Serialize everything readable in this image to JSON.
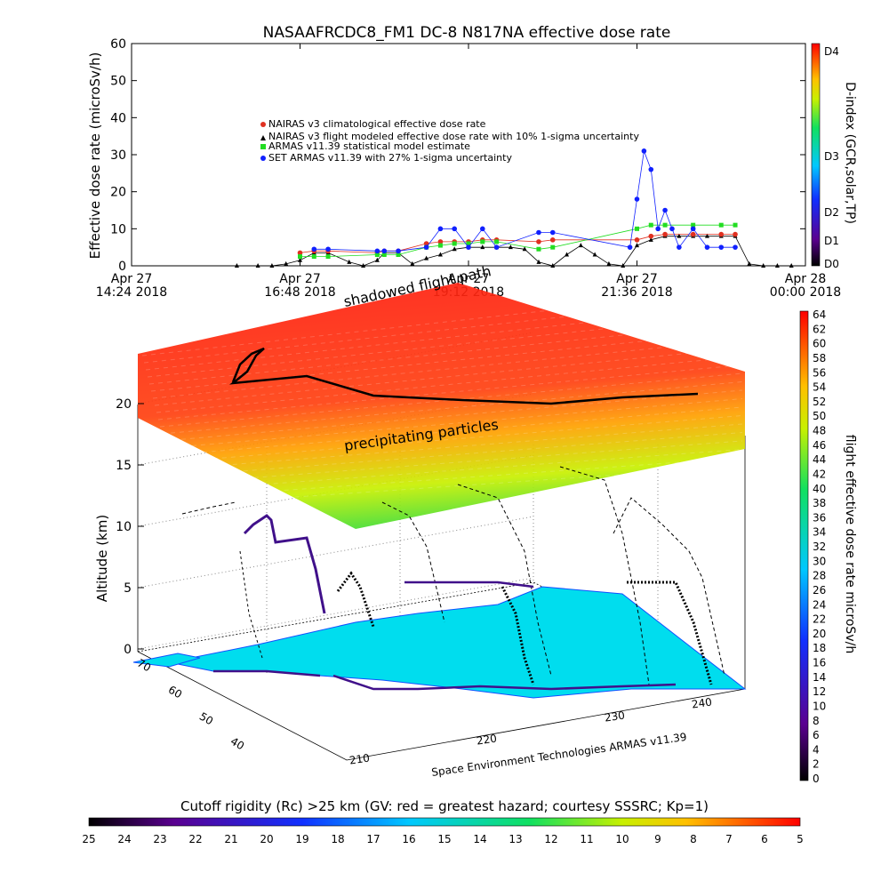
{
  "title": "NASAAFRCDC8_FM1 DC-8    N817NA effective dose rate",
  "chart_data": [
    {
      "type": "scatter",
      "title": "NASAAFRCDC8_FM1 DC-8    N817NA effective dose rate",
      "ylabel": "Effective dose rate (microSv/h)",
      "ylim": [
        0,
        60
      ],
      "yticks": [
        "0",
        "10",
        "20",
        "30",
        "40",
        "50",
        "60"
      ],
      "xticks": [
        {
          "l1": "Apr 27",
          "l2": "14:24 2018"
        },
        {
          "l1": "Apr 27",
          "l2": "16:48 2018"
        },
        {
          "l1": "Apr 27",
          "l2": "19:12 2018"
        },
        {
          "l1": "Apr 27",
          "l2": "21:36 2018"
        },
        {
          "l1": "Apr 28",
          "l2": "00:00 2018"
        }
      ],
      "xlim_hours": [
        14.4,
        24.0
      ],
      "legend": [
        {
          "label": "NAIRAS v3 climatological effective dose rate",
          "color": "#e03020",
          "marker": "circle"
        },
        {
          "label": "NAIRAS v3 flight modeled effective dose rate with 10% 1-sigma uncertainty",
          "color": "#000000",
          "marker": "triangle"
        },
        {
          "label": "ARMAS v11.39 statistical model estimate",
          "color": "#22dd22",
          "marker": "square"
        },
        {
          "label": "SET ARMAS v11.39 with 27% 1-sigma uncertainty",
          "color": "#1020ff",
          "marker": "circle"
        }
      ],
      "legend_position": "upper-left",
      "series": [
        {
          "name": "NAIRAS v3 flight modeled effective dose rate with 10% 1-sigma uncertainty",
          "color": "#000000",
          "x_hours": [
            15.9,
            16.2,
            16.4,
            16.6,
            16.8,
            17.0,
            17.2,
            17.5,
            17.7,
            17.9,
            18.0,
            18.2,
            18.4,
            18.6,
            18.8,
            19.0,
            19.2,
            19.4,
            19.6,
            19.8,
            20.0,
            20.2,
            20.4,
            20.6,
            20.8,
            21.0,
            21.2,
            21.4,
            21.6,
            21.8,
            22.0,
            22.2,
            22.4,
            22.6,
            22.8,
            23.0,
            23.2,
            23.4,
            23.6,
            23.8
          ],
          "values": [
            0,
            0,
            0,
            0.5,
            1.5,
            3.5,
            3.5,
            1,
            0,
            1.5,
            3.5,
            3.5,
            0.5,
            2,
            3,
            4.5,
            5,
            5,
            5,
            5,
            4.5,
            1,
            0,
            3,
            5.5,
            3,
            0.5,
            0,
            5.5,
            7,
            8,
            8,
            8,
            8,
            8,
            8,
            0.5,
            0,
            0,
            0
          ]
        },
        {
          "name": "NAIRAS v3 climatological effective dose rate",
          "color": "#e03020",
          "x_hours": [
            16.8,
            17.0,
            17.2,
            17.9,
            18.0,
            18.2,
            18.6,
            18.8,
            19.0,
            19.2,
            19.4,
            19.6,
            20.2,
            20.4,
            21.6,
            21.8,
            22.0,
            22.4,
            22.8,
            23.0
          ],
          "values": [
            3.5,
            4,
            4,
            3.5,
            4,
            4,
            6,
            6.5,
            6.5,
            6.5,
            7,
            7,
            6.5,
            7,
            7,
            8,
            8.5,
            8.5,
            8.5,
            8.5
          ]
        },
        {
          "name": "ARMAS v11.39 statistical model estimate",
          "color": "#22dd22",
          "x_hours": [
            16.8,
            17.0,
            17.2,
            17.9,
            18.0,
            18.2,
            18.6,
            18.8,
            19.0,
            19.2,
            19.4,
            19.6,
            20.2,
            20.4,
            21.6,
            21.8,
            22.0,
            22.4,
            22.8,
            23.0
          ],
          "values": [
            2.5,
            2.5,
            2.5,
            3,
            3,
            3,
            5,
            5.5,
            6,
            6,
            6.5,
            6.5,
            4.5,
            5,
            10,
            11,
            11,
            11,
            11,
            11
          ]
        },
        {
          "name": "SET ARMAS v11.39 with 27% 1-sigma uncertainty",
          "color": "#1020ff",
          "x_hours": [
            17.0,
            17.2,
            17.9,
            18.0,
            18.2,
            18.6,
            18.8,
            19.0,
            19.2,
            19.4,
            19.6,
            20.2,
            20.4,
            21.5,
            21.6,
            21.7,
            21.8,
            21.9,
            22.0,
            22.1,
            22.2,
            22.4,
            22.6,
            22.8,
            23.0
          ],
          "values": [
            4.5,
            4.5,
            4,
            4,
            4,
            5,
            10,
            10,
            5,
            10,
            5,
            9,
            9,
            5,
            18,
            31,
            26,
            10,
            15,
            10,
            5,
            10,
            5,
            5,
            5
          ]
        }
      ]
    },
    {
      "type": "surface-3d",
      "ylabel": "Altitude (km)",
      "zlim": [
        0,
        20
      ],
      "zticks": [
        "0",
        "5",
        "10",
        "15",
        "20"
      ],
      "lat_ticks": [
        "70",
        "60",
        "50",
        "40"
      ],
      "lon_ticks": [
        "210",
        "220",
        "230",
        "240"
      ],
      "annotations": [
        "shadowed flight path",
        "precipitating particles"
      ],
      "footer": "Space Environment Technologies ARMAS v11.39"
    }
  ],
  "right_colorbar_top": {
    "label": "D-index (GCR,solar,TP)",
    "ticks": [
      "D4",
      "D3",
      "D2",
      "D1",
      "D0"
    ]
  },
  "right_colorbar": {
    "label": "flight effective dose rate microSv/h",
    "ticks": [
      "64",
      "62",
      "60",
      "58",
      "56",
      "54",
      "52",
      "50",
      "48",
      "46",
      "44",
      "42",
      "40",
      "38",
      "36",
      "34",
      "32",
      "30",
      "28",
      "26",
      "24",
      "22",
      "20",
      "18",
      "16",
      "14",
      "12",
      "10",
      "8",
      "6",
      "4",
      "2",
      "0"
    ]
  },
  "bottom_colorbar": {
    "label": "Cutoff rigidity (Rc) >25 km (GV: red = greatest hazard; courtesy SSSRC; Kp=1)",
    "ticks": [
      "25",
      "24",
      "23",
      "22",
      "21",
      "20",
      "19",
      "18",
      "17",
      "16",
      "15",
      "14",
      "13",
      "12",
      "11",
      "10",
      "9",
      "8",
      "7",
      "6",
      "5"
    ]
  }
}
